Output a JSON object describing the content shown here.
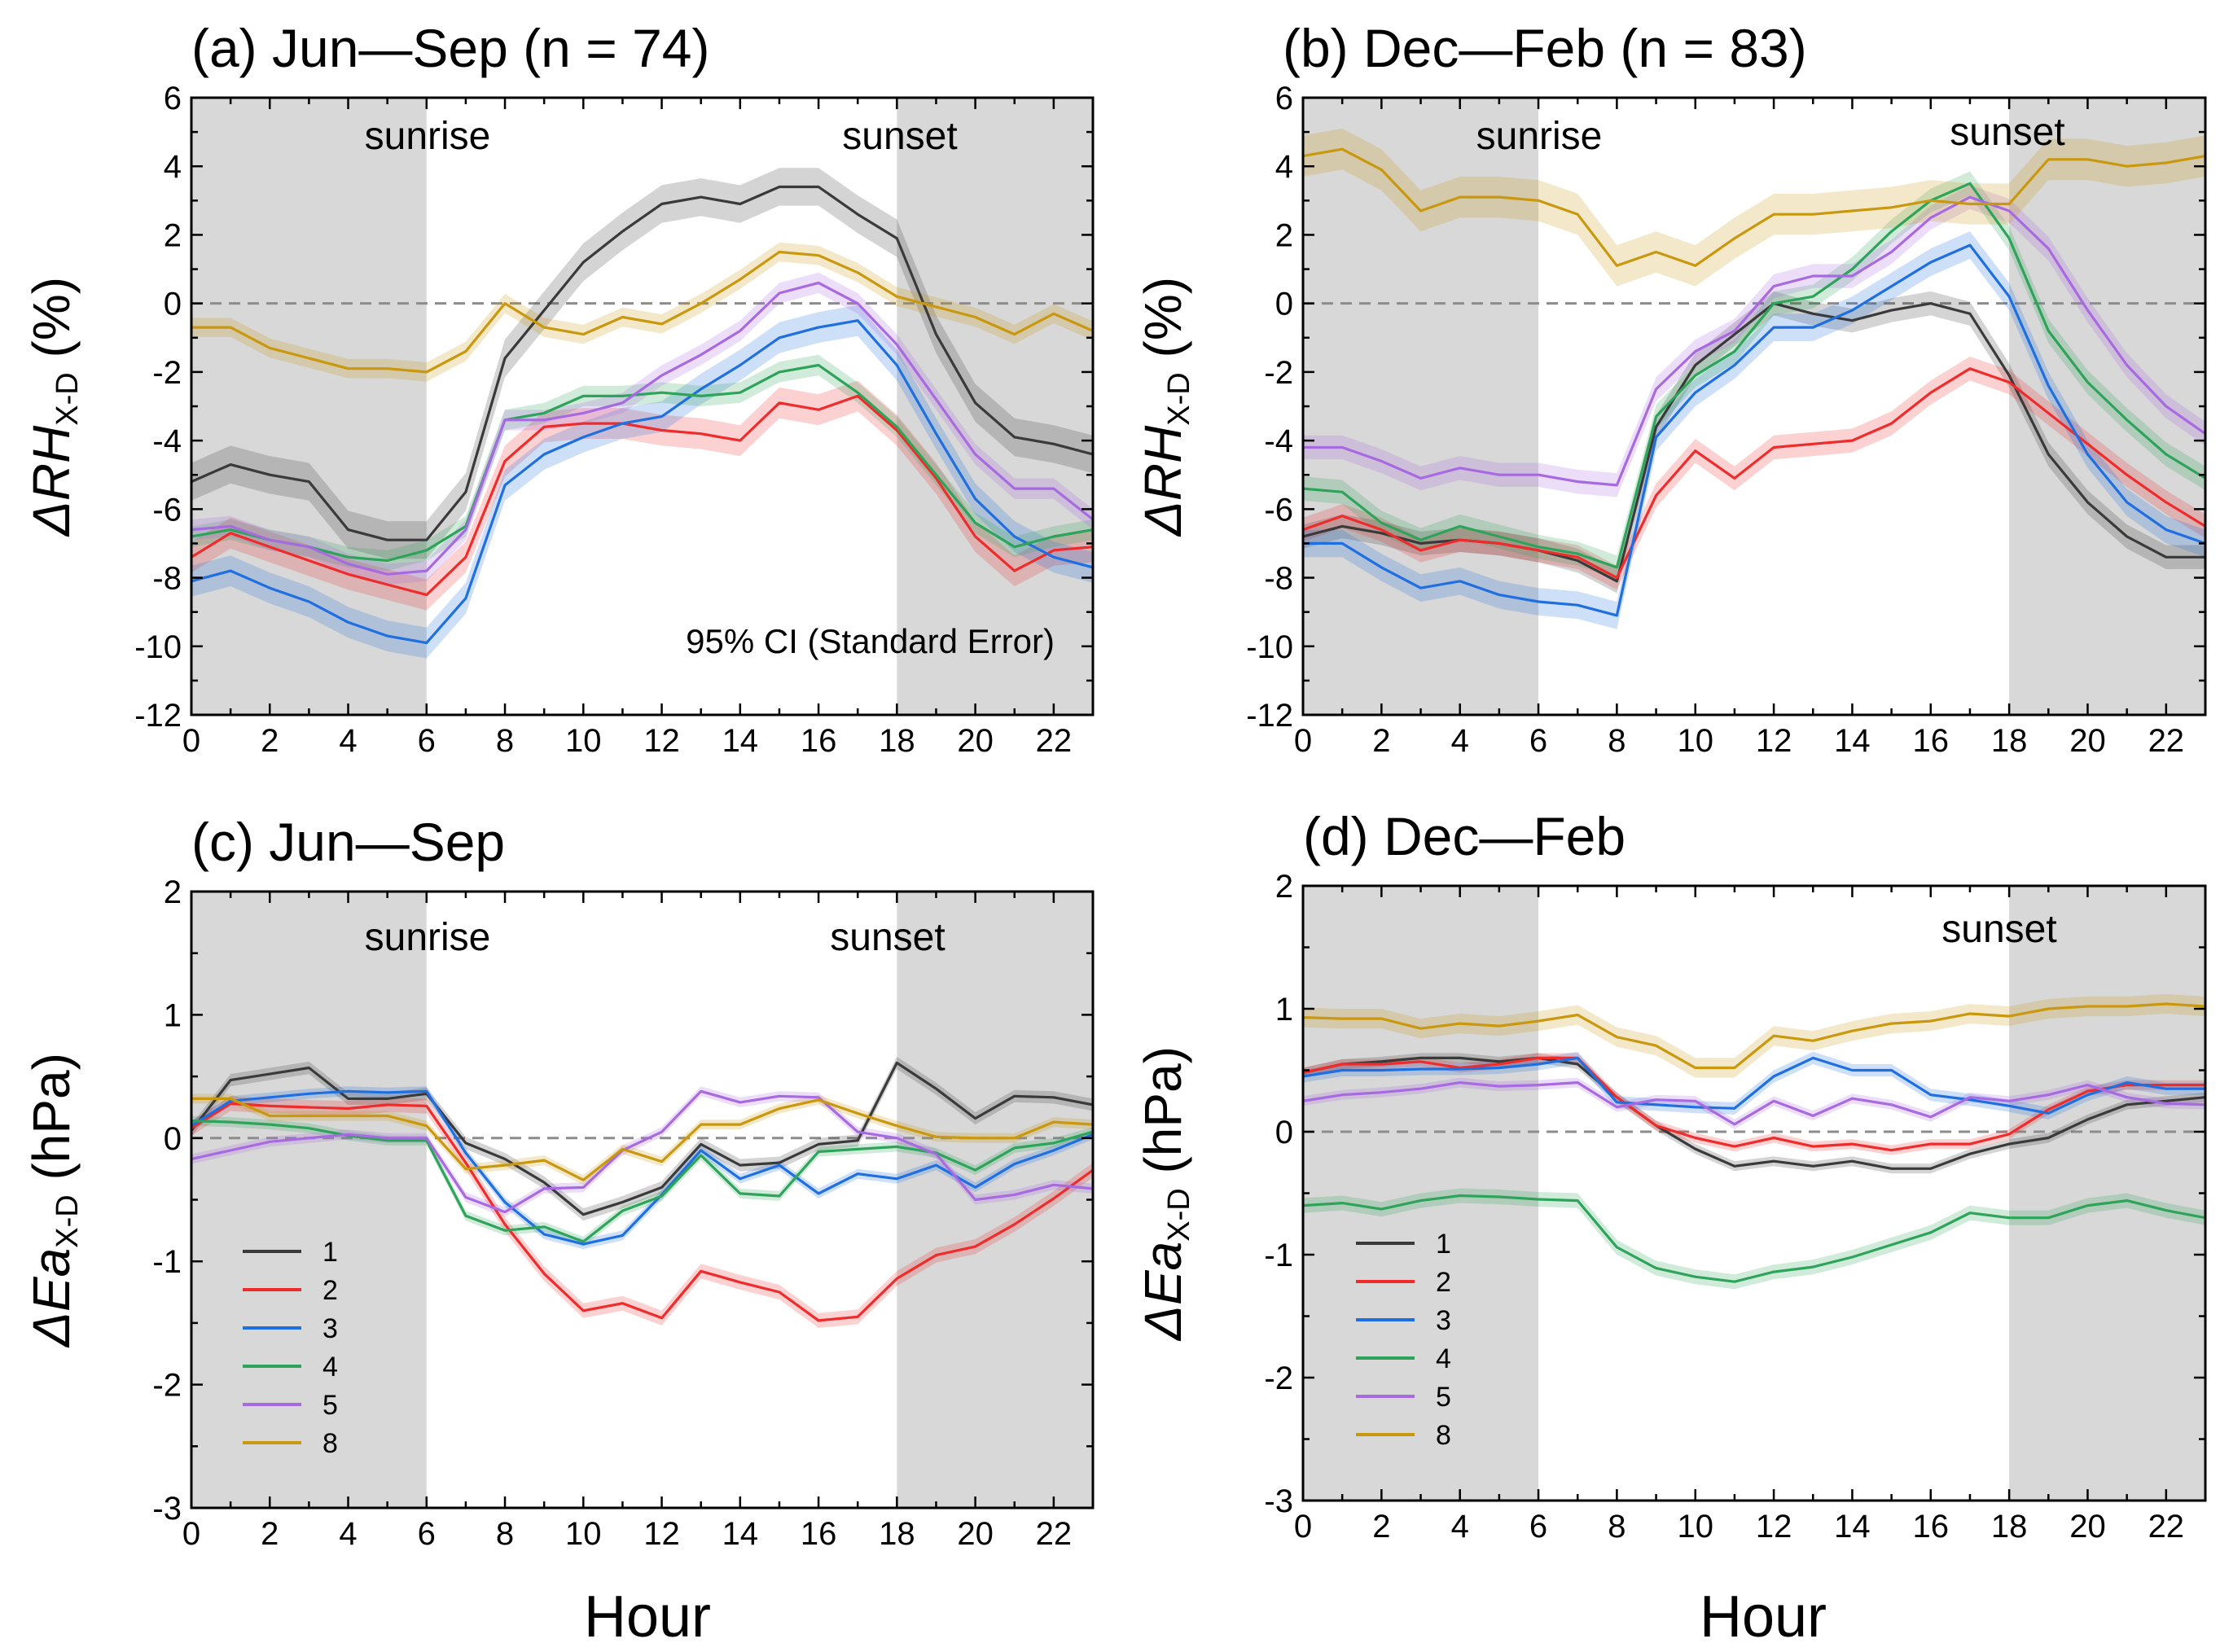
{
  "colors": {
    "1": "#3a3a3a",
    "2": "#ee2c2c",
    "3": "#1f6fe0",
    "4": "#2ea35a",
    "5": "#a86ae0",
    "8": "#c9980e",
    "shade": "#d8d8d8",
    "zero_line": "#8c8c8c"
  },
  "figure": {
    "xlabel": "Hour"
  },
  "chart_data": [
    {
      "id": "a",
      "type": "line",
      "title": "(a) Jun—Sep (n = 74)",
      "ylabel_main": "ΔRH",
      "ylabel_sub": "X-D",
      "ylabel_unit": " (%)",
      "xlim": [
        0,
        23
      ],
      "ylim": [
        -12,
        6
      ],
      "xticks": [
        0,
        2,
        4,
        6,
        8,
        10,
        12,
        14,
        16,
        18,
        20,
        22
      ],
      "yticks": [
        -12,
        -10,
        -8,
        -6,
        -4,
        -2,
        0,
        2,
        4,
        6
      ],
      "night_shading": [
        [
          0,
          6
        ],
        [
          18,
          23
        ]
      ],
      "annotations": [
        "sunrise",
        "sunset"
      ],
      "ci_note": "95% CI (Standard Error)",
      "series": [
        {
          "name": "1",
          "ci": 0.55,
          "values": [
            -5.2,
            -4.7,
            -5.0,
            -5.2,
            -6.6,
            -6.9,
            -6.9,
            -5.5,
            -1.6,
            -0.2,
            1.2,
            2.1,
            2.9,
            3.1,
            2.9,
            3.4,
            3.4,
            2.6,
            1.9,
            -0.9,
            -2.9,
            -3.9,
            -4.1,
            -4.4
          ]
        },
        {
          "name": "2",
          "ci": 0.45,
          "values": [
            -7.4,
            -6.7,
            -7.1,
            -7.5,
            -7.9,
            -8.2,
            -8.5,
            -7.4,
            -4.6,
            -3.6,
            -3.5,
            -3.5,
            -3.7,
            -3.8,
            -4.0,
            -2.9,
            -3.1,
            -2.7,
            -3.7,
            -5.1,
            -6.8,
            -7.8,
            -7.2,
            -7.1
          ]
        },
        {
          "name": "3",
          "ci": 0.45,
          "values": [
            -8.1,
            -7.8,
            -8.3,
            -8.7,
            -9.3,
            -9.7,
            -9.9,
            -8.6,
            -5.3,
            -4.4,
            -3.9,
            -3.5,
            -3.3,
            -2.5,
            -1.8,
            -1.0,
            -0.7,
            -0.5,
            -1.8,
            -3.8,
            -5.7,
            -6.8,
            -7.4,
            -7.7
          ]
        },
        {
          "name": "4",
          "ci": 0.3,
          "values": [
            -6.8,
            -6.6,
            -6.9,
            -7.1,
            -7.4,
            -7.5,
            -7.2,
            -6.5,
            -3.4,
            -3.2,
            -2.7,
            -2.7,
            -2.6,
            -2.7,
            -2.6,
            -2.0,
            -1.8,
            -2.6,
            -3.6,
            -5.0,
            -6.4,
            -7.1,
            -6.8,
            -6.6
          ]
        },
        {
          "name": "5",
          "ci": 0.3,
          "values": [
            -6.6,
            -6.5,
            -6.9,
            -7.1,
            -7.6,
            -7.9,
            -7.8,
            -6.6,
            -3.4,
            -3.4,
            -3.2,
            -2.9,
            -2.1,
            -1.5,
            -0.8,
            0.3,
            0.6,
            0.0,
            -1.2,
            -2.8,
            -4.4,
            -5.4,
            -5.4,
            -6.3
          ]
        },
        {
          "name": "8",
          "ci": 0.28,
          "values": [
            -0.7,
            -0.7,
            -1.3,
            -1.6,
            -1.9,
            -1.9,
            -2.0,
            -1.4,
            0.0,
            -0.7,
            -0.9,
            -0.4,
            -0.6,
            0.0,
            0.7,
            1.5,
            1.4,
            0.9,
            0.2,
            -0.1,
            -0.4,
            -0.9,
            -0.3,
            -0.8
          ]
        }
      ]
    },
    {
      "id": "b",
      "type": "line",
      "title": "(b) Dec—Feb (n = 83)",
      "ylabel_main": "ΔRH",
      "ylabel_sub": "X-D",
      "ylabel_unit": " (%)",
      "xlim": [
        0,
        23
      ],
      "ylim": [
        -12,
        6
      ],
      "xticks": [
        0,
        2,
        4,
        6,
        8,
        10,
        12,
        14,
        16,
        18,
        20,
        22
      ],
      "yticks": [
        -12,
        -10,
        -8,
        -6,
        -4,
        -2,
        0,
        2,
        4,
        6
      ],
      "night_shading": [
        [
          0,
          6
        ],
        [
          18,
          23
        ]
      ],
      "annotations": [
        "sunrise",
        "sunset"
      ],
      "series": [
        {
          "name": "1",
          "ci": 0.35,
          "values": [
            -6.8,
            -6.5,
            -6.7,
            -7.0,
            -6.9,
            -7.0,
            -7.2,
            -7.5,
            -8.1,
            -3.6,
            -1.8,
            -0.9,
            0.0,
            -0.3,
            -0.5,
            -0.2,
            0.0,
            -0.3,
            -2.1,
            -4.4,
            -5.8,
            -6.8,
            -7.4,
            -7.4
          ]
        },
        {
          "name": "2",
          "ci": 0.35,
          "values": [
            -6.6,
            -6.2,
            -6.6,
            -7.2,
            -6.9,
            -7.0,
            -7.2,
            -7.4,
            -8.0,
            -5.6,
            -4.3,
            -5.1,
            -4.2,
            -4.1,
            -4.0,
            -3.5,
            -2.6,
            -1.9,
            -2.3,
            -3.2,
            -4.1,
            -5.0,
            -5.8,
            -6.5
          ]
        },
        {
          "name": "3",
          "ci": 0.4,
          "values": [
            -7.0,
            -7.0,
            -7.7,
            -8.3,
            -8.1,
            -8.5,
            -8.7,
            -8.8,
            -9.1,
            -3.9,
            -2.6,
            -1.8,
            -0.7,
            -0.7,
            -0.2,
            0.5,
            1.2,
            1.7,
            0.2,
            -2.4,
            -4.4,
            -5.8,
            -6.6,
            -7.0
          ]
        },
        {
          "name": "4",
          "ci": 0.35,
          "values": [
            -5.4,
            -5.5,
            -6.4,
            -6.9,
            -6.5,
            -6.8,
            -7.1,
            -7.3,
            -7.7,
            -3.3,
            -2.1,
            -1.4,
            0.0,
            0.2,
            1.0,
            2.1,
            3.0,
            3.5,
            1.9,
            -0.8,
            -2.3,
            -3.4,
            -4.4,
            -5.1
          ]
        },
        {
          "name": "5",
          "ci": 0.35,
          "values": [
            -4.2,
            -4.2,
            -4.6,
            -5.1,
            -4.8,
            -5.0,
            -5.0,
            -5.2,
            -5.3,
            -2.5,
            -1.4,
            -0.8,
            0.5,
            0.8,
            0.8,
            1.5,
            2.5,
            3.1,
            2.7,
            1.6,
            -0.2,
            -1.8,
            -3.0,
            -3.8
          ]
        },
        {
          "name": "8",
          "ci": 0.6,
          "values": [
            4.3,
            4.5,
            3.9,
            2.7,
            3.1,
            3.1,
            3.0,
            2.6,
            1.1,
            1.5,
            1.1,
            1.9,
            2.6,
            2.6,
            2.7,
            2.8,
            3.0,
            2.9,
            2.9,
            4.2,
            4.2,
            4.0,
            4.1,
            4.3
          ]
        }
      ]
    },
    {
      "id": "c",
      "type": "line",
      "title": "(c) Jun—Sep",
      "ylabel_main": "ΔEa",
      "ylabel_sub": "X-D",
      "ylabel_unit": " (hPa)",
      "xlim": [
        0,
        23
      ],
      "ylim": [
        -3,
        2
      ],
      "xticks": [
        0,
        2,
        4,
        6,
        8,
        10,
        12,
        14,
        16,
        18,
        20,
        22
      ],
      "yticks": [
        -3,
        -2,
        -1,
        0,
        1,
        2
      ],
      "night_shading": [
        [
          0,
          6
        ],
        [
          18,
          23
        ]
      ],
      "annotations": [
        "sunrise",
        "sunset"
      ],
      "legend": [
        "1",
        "2",
        "3",
        "4",
        "5",
        "8"
      ],
      "series": [
        {
          "name": "1",
          "ci": 0.05,
          "values": [
            0.06,
            0.47,
            0.52,
            0.57,
            0.32,
            0.32,
            0.36,
            -0.04,
            -0.17,
            -0.36,
            -0.62,
            -0.52,
            -0.4,
            -0.05,
            -0.22,
            -0.2,
            -0.05,
            -0.02,
            0.61,
            0.4,
            0.16,
            0.34,
            0.33,
            0.27
          ]
        },
        {
          "name": "2",
          "ci": 0.06,
          "values": [
            0.08,
            0.28,
            0.26,
            0.25,
            0.24,
            0.27,
            0.26,
            -0.2,
            -0.7,
            -1.1,
            -1.4,
            -1.34,
            -1.46,
            -1.08,
            -1.17,
            -1.25,
            -1.48,
            -1.45,
            -1.14,
            -0.95,
            -0.88,
            -0.7,
            -0.49,
            -0.26
          ]
        },
        {
          "name": "3",
          "ci": 0.04,
          "values": [
            0.1,
            0.3,
            0.33,
            0.36,
            0.38,
            0.37,
            0.38,
            -0.12,
            -0.52,
            -0.78,
            -0.86,
            -0.79,
            -0.46,
            -0.1,
            -0.33,
            -0.22,
            -0.45,
            -0.29,
            -0.33,
            -0.22,
            -0.4,
            -0.21,
            -0.1,
            0.03
          ]
        },
        {
          "name": "4",
          "ci": 0.04,
          "values": [
            0.14,
            0.13,
            0.11,
            0.08,
            0.02,
            -0.02,
            -0.02,
            -0.63,
            -0.75,
            -0.72,
            -0.84,
            -0.59,
            -0.47,
            -0.14,
            -0.45,
            -0.47,
            -0.11,
            -0.09,
            -0.07,
            -0.12,
            -0.26,
            -0.08,
            -0.04,
            0.05
          ]
        },
        {
          "name": "5",
          "ci": 0.04,
          "values": [
            -0.17,
            -0.1,
            -0.03,
            0.0,
            0.03,
            0.0,
            0.0,
            -0.48,
            -0.6,
            -0.41,
            -0.4,
            -0.1,
            0.05,
            0.38,
            0.29,
            0.34,
            0.33,
            0.05,
            0.0,
            -0.13,
            -0.5,
            -0.46,
            -0.38,
            -0.41
          ]
        },
        {
          "name": "8",
          "ci": 0.04,
          "values": [
            0.32,
            0.32,
            0.18,
            0.18,
            0.18,
            0.18,
            0.1,
            -0.25,
            -0.22,
            -0.18,
            -0.34,
            -0.09,
            -0.19,
            0.11,
            0.11,
            0.24,
            0.31,
            0.2,
            0.1,
            0.01,
            0.0,
            0.0,
            0.13,
            0.11
          ]
        }
      ]
    },
    {
      "id": "d",
      "type": "line",
      "title": "(d) Dec—Feb",
      "ylabel_main": "ΔEa",
      "ylabel_sub": "X-D",
      "ylabel_unit": " (hPa)",
      "xlim": [
        0,
        23
      ],
      "ylim": [
        -3,
        2
      ],
      "xticks": [
        0,
        2,
        4,
        6,
        8,
        10,
        12,
        14,
        16,
        18,
        20,
        22
      ],
      "yticks": [
        -3,
        -2,
        -1,
        0,
        1,
        2
      ],
      "night_shading": [
        [
          0,
          6
        ],
        [
          18,
          23
        ]
      ],
      "annotations": [
        "sunset"
      ],
      "legend": [
        "1",
        "2",
        "3",
        "4",
        "5",
        "8"
      ],
      "series": [
        {
          "name": "1",
          "ci": 0.04,
          "values": [
            0.48,
            0.55,
            0.57,
            0.6,
            0.6,
            0.57,
            0.6,
            0.55,
            0.28,
            0.05,
            -0.14,
            -0.28,
            -0.24,
            -0.28,
            -0.24,
            -0.3,
            -0.3,
            -0.18,
            -0.1,
            -0.05,
            0.1,
            0.22,
            0.25,
            0.28
          ]
        },
        {
          "name": "2",
          "ci": 0.04,
          "values": [
            0.48,
            0.55,
            0.55,
            0.57,
            0.52,
            0.55,
            0.6,
            0.6,
            0.28,
            0.05,
            -0.05,
            -0.12,
            -0.05,
            -0.12,
            -0.1,
            -0.15,
            -0.1,
            -0.1,
            -0.02,
            0.18,
            0.33,
            0.38,
            0.38,
            0.38
          ]
        },
        {
          "name": "3",
          "ci": 0.05,
          "values": [
            0.45,
            0.5,
            0.5,
            0.51,
            0.51,
            0.52,
            0.55,
            0.6,
            0.24,
            0.22,
            0.2,
            0.19,
            0.45,
            0.6,
            0.5,
            0.5,
            0.3,
            0.26,
            0.21,
            0.15,
            0.3,
            0.4,
            0.35,
            0.35
          ]
        },
        {
          "name": "4",
          "ci": 0.06,
          "values": [
            -0.6,
            -0.58,
            -0.63,
            -0.56,
            -0.52,
            -0.53,
            -0.55,
            -0.56,
            -0.94,
            -1.11,
            -1.18,
            -1.22,
            -1.14,
            -1.1,
            -1.02,
            -0.92,
            -0.82,
            -0.66,
            -0.7,
            -0.7,
            -0.6,
            -0.56,
            -0.64,
            -0.7
          ]
        },
        {
          "name": "5",
          "ci": 0.04,
          "values": [
            0.25,
            0.3,
            0.32,
            0.35,
            0.4,
            0.37,
            0.38,
            0.4,
            0.2,
            0.26,
            0.25,
            0.06,
            0.25,
            0.13,
            0.27,
            0.22,
            0.12,
            0.28,
            0.25,
            0.3,
            0.38,
            0.28,
            0.23,
            0.22
          ]
        },
        {
          "name": "8",
          "ci": 0.08,
          "values": [
            0.93,
            0.92,
            0.92,
            0.84,
            0.88,
            0.86,
            0.9,
            0.95,
            0.77,
            0.7,
            0.52,
            0.52,
            0.78,
            0.74,
            0.82,
            0.88,
            0.9,
            0.96,
            0.94,
            1.0,
            1.02,
            1.02,
            1.04,
            1.02
          ]
        }
      ]
    }
  ]
}
